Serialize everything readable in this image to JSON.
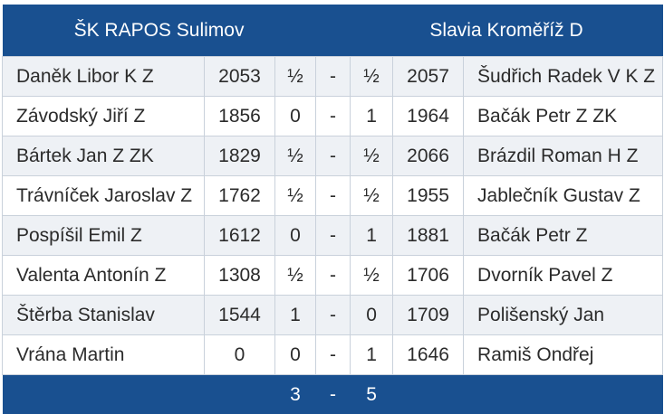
{
  "home_team": "ŠK RAPOS Sulimov",
  "away_team": "Slavia Kroměříž D",
  "separator": "-",
  "boards": [
    {
      "home_name": "Daněk Libor K Z",
      "home_rating": "2053",
      "home_score": "½",
      "away_score": "½",
      "away_rating": "2057",
      "away_name": "Šudřich Radek V K Z"
    },
    {
      "home_name": "Závodský Jiří Z",
      "home_rating": "1856",
      "home_score": "0",
      "away_score": "1",
      "away_rating": "1964",
      "away_name": "Bačák Petr Z ZK"
    },
    {
      "home_name": "Bártek Jan Z ZK",
      "home_rating": "1829",
      "home_score": "½",
      "away_score": "½",
      "away_rating": "2066",
      "away_name": "Brázdil Roman H Z"
    },
    {
      "home_name": "Trávníček Jaroslav Z",
      "home_rating": "1762",
      "home_score": "½",
      "away_score": "½",
      "away_rating": "1955",
      "away_name": "Jablečník Gustav Z"
    },
    {
      "home_name": "Pospíšil Emil Z",
      "home_rating": "1612",
      "home_score": "0",
      "away_score": "1",
      "away_rating": "1881",
      "away_name": "Bačák Petr Z"
    },
    {
      "home_name": "Valenta Antonín Z",
      "home_rating": "1308",
      "home_score": "½",
      "away_score": "½",
      "away_rating": "1706",
      "away_name": "Dvorník Pavel Z"
    },
    {
      "home_name": "Štěrba Stanislav",
      "home_rating": "1544",
      "home_score": "1",
      "away_score": "0",
      "away_rating": "1709",
      "away_name": "Polišenský Jan"
    },
    {
      "home_name": "Vrána Martin",
      "home_rating": "0",
      "home_score": "0",
      "away_score": "1",
      "away_rating": "1646",
      "away_name": "Ramiš Ondřej"
    }
  ],
  "total": {
    "home": "3",
    "away": "5"
  },
  "colors": {
    "header_bg": "#195090",
    "row_alt_bg": "#eef1f5",
    "border": "#c9d1db"
  }
}
